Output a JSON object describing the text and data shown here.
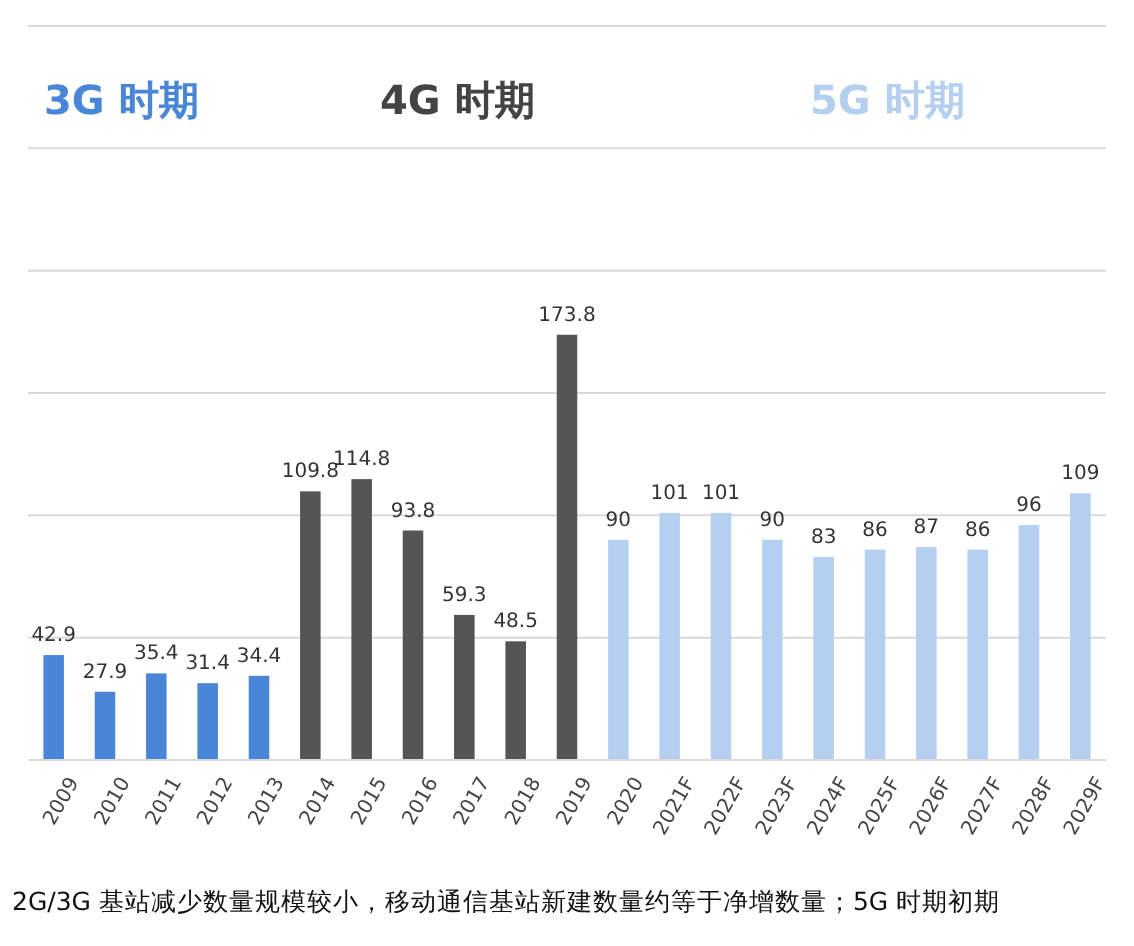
{
  "chart_data": {
    "type": "bar",
    "categories": [
      "2009",
      "2010",
      "2011",
      "2012",
      "2013",
      "2014",
      "2015",
      "2016",
      "2017",
      "2018",
      "2019",
      "2020",
      "2021F",
      "2022F",
      "2023F",
      "2024F",
      "2025F",
      "2026F",
      "2027F",
      "2028F",
      "2029F"
    ],
    "values": [
      42.9,
      27.9,
      35.4,
      31.4,
      34.4,
      109.8,
      114.8,
      93.8,
      59.3,
      48.5,
      173.8,
      90,
      101,
      101,
      90,
      83,
      86,
      87,
      86,
      96,
      109
    ],
    "colors": [
      "#4a86d8",
      "#4a86d8",
      "#4a86d8",
      "#4a86d8",
      "#4a86d8",
      "#555555",
      "#555555",
      "#555555",
      "#555555",
      "#555555",
      "#555555",
      "#b4cff0",
      "#b4cff0",
      "#b4cff0",
      "#b4cff0",
      "#b4cff0",
      "#b4cff0",
      "#b4cff0",
      "#b4cff0",
      "#b4cff0",
      "#b4cff0"
    ],
    "ylim": [
      0,
      300
    ],
    "yticks": [
      {
        "value": 0,
        "label": null
      },
      {
        "value": 50,
        "label": null
      },
      {
        "value": 100,
        "label": null
      },
      {
        "value": 150,
        "label": null
      },
      {
        "value": 200,
        "label": null
      },
      {
        "value": 250,
        "label": null
      },
      {
        "value": 300,
        "label": null
      }
    ],
    "grid": "y",
    "tick_labels": "x",
    "data_labels": true,
    "annotations": [
      "3G 时期",
      "4G 时期",
      "5G 时期",
      "2G/3G 基站减少数量规模较小，移动通信基站新建数量约等于净增数量；5G 时期初期"
    ]
  }
}
